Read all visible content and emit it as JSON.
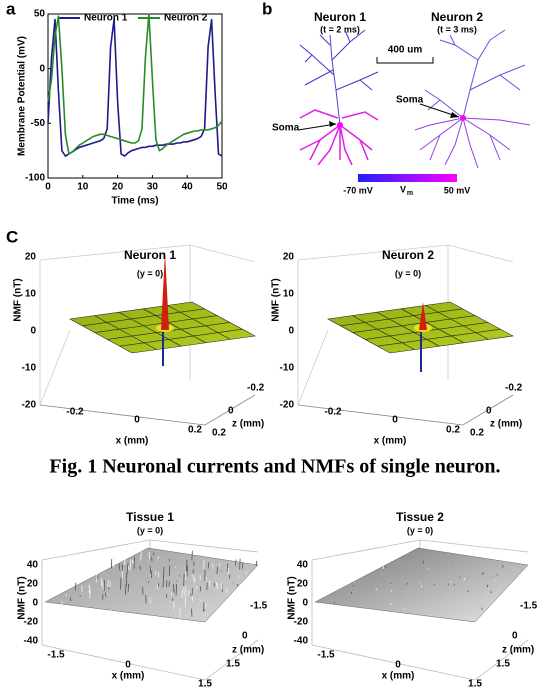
{
  "panel_a": {
    "label": "a",
    "type": "line",
    "xlabel": "Time (ms)",
    "ylabel": "Membrane Potential (mV)",
    "xlim": [
      0,
      50
    ],
    "ylim": [
      -100,
      50
    ],
    "xticks": [
      0,
      10,
      20,
      30,
      40,
      50
    ],
    "yticks": [
      -100,
      -50,
      0,
      50
    ],
    "x": [
      0,
      1,
      2,
      3,
      4,
      5,
      6,
      7,
      8,
      9,
      10,
      11,
      12,
      13,
      14,
      15,
      16,
      17,
      18,
      19,
      20,
      21,
      22,
      23,
      24,
      25,
      26,
      27,
      28,
      29,
      30,
      31,
      32,
      33,
      34,
      35,
      36,
      37,
      38,
      39,
      40,
      41,
      42,
      43,
      44,
      45,
      46,
      47,
      48,
      49,
      50
    ],
    "series": [
      {
        "name": "Neuron 1",
        "color": "#1c1c8c",
        "values": [
          -50,
          10,
          45,
          -20,
          -75,
          -80,
          -78,
          -76,
          -74,
          -72,
          -71,
          -70,
          -69,
          -68,
          -67,
          -66,
          -64,
          -55,
          20,
          45,
          -30,
          -78,
          -80,
          -77,
          -75,
          -74,
          -73,
          -72,
          -72,
          -71,
          -71,
          -70,
          -70,
          -70,
          -69,
          -69,
          -69,
          -68,
          -68,
          -67,
          -67,
          -66,
          -65,
          -64,
          -62,
          -55,
          20,
          45,
          -20,
          -78,
          -80
        ]
      },
      {
        "name": "Neuron 2",
        "color": "#2a8a2a",
        "values": [
          -30,
          -10,
          30,
          48,
          0,
          -60,
          -78,
          -76,
          -73,
          -70,
          -68,
          -66,
          -64,
          -62,
          -61,
          -60,
          -60,
          -61,
          -62,
          -63,
          -64,
          -65,
          -66,
          -67,
          -68,
          -68,
          -66,
          -55,
          10,
          50,
          -10,
          -65,
          -75,
          -73,
          -70,
          -68,
          -66,
          -64,
          -62,
          -60,
          -59,
          -58,
          -57,
          -57,
          -56,
          -56,
          -56,
          -55,
          -54,
          -52,
          -48
        ]
      }
    ]
  },
  "panel_b": {
    "label": "b",
    "neurons": [
      {
        "title": "Neuron 1",
        "time": "(t = 2 ms)"
      },
      {
        "title": "Neuron 2",
        "time": "(t = 3 ms)"
      }
    ],
    "scale": "400 um",
    "soma": "Soma",
    "colorbar": {
      "min": "-70 mV",
      "label": "V",
      "label_sub": "m",
      "max": "50 mV"
    }
  },
  "panel_c": {
    "label": "C",
    "plots": [
      {
        "title": "Neuron 1",
        "subtitle": "(y = 0)",
        "ylabel": "NMF (nT)",
        "yticks": [
          "20",
          "10",
          "0",
          "-10",
          "-20"
        ],
        "xlabel": "x (mm)",
        "xticks": [
          "-0.2",
          "0",
          "0.2"
        ],
        "zlabel": "z (mm)",
        "zticks": [
          "-0.2",
          "0",
          "0.2"
        ]
      },
      {
        "title": "Neuron 2",
        "subtitle": "(y = 0)",
        "ylabel": "NMF (nT)",
        "yticks": [
          "20",
          "10",
          "0",
          "-10",
          "-20"
        ],
        "xlabel": "x (mm)",
        "xticks": [
          "-0.2",
          "0",
          "0.2"
        ],
        "zlabel": "z (mm)",
        "zticks": [
          "-0.2",
          "0",
          "0.2"
        ]
      }
    ]
  },
  "caption": "Fig. 1 Neuronal currents and NMFs of single neuron.",
  "panel_d": {
    "plots": [
      {
        "title": "Tissue 1",
        "subtitle": "(y = 0)",
        "ylabel": "NMF (nT)",
        "yticks": [
          "40",
          "20",
          "0",
          "-20",
          "-40"
        ],
        "xlabel": "x (mm)",
        "xticks": [
          "-1.5",
          "0",
          "1.5"
        ],
        "zlabel": "z (mm)",
        "zticks": [
          "-1.5",
          "0",
          "1.5"
        ]
      },
      {
        "title": "Tissue 2",
        "subtitle": "(y = 0)",
        "ylabel": "NMF (nT)",
        "yticks": [
          "40",
          "20",
          "0",
          "-20",
          "-40"
        ],
        "xlabel": "x (mm)",
        "xticks": [
          "-1.5",
          "0",
          "1.5"
        ],
        "zlabel": "z (mm)",
        "zticks": [
          "-1.5",
          "0",
          "1.5"
        ]
      }
    ]
  }
}
